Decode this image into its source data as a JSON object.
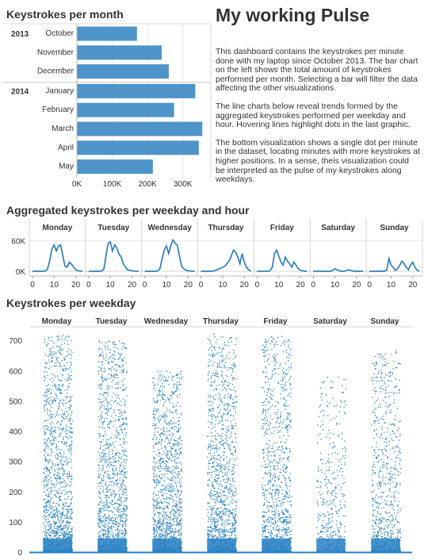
{
  "titles": {
    "month": "Keystrokes per month",
    "main": "My working Pulse",
    "aggregated": "Aggregated keystrokes per weekday and hour",
    "weekday": "Keystrokes per weekday"
  },
  "description": [
    "This dashboard contains the keystrokes per minute done with my laptop since October 2013. The bar chart on the left shows the total amount of keystrokes performed per month. Selecting a bar will filter the data affecting the other visualizations.",
    "The line charts below reveal trends formed by the aggregated keystrokes performed per weekday and hour. Hovering lines highlight dots in the last graphic.",
    "The bottom visualization shows a single dot per minute in the dataset, locating minutes with more keystrokes at higher positions. In a sense, theis visualization could be interpreted as the pulse of my keystrokes along weekdays."
  ],
  "colors": {
    "bar": "#4f94c9",
    "line": "#2f80bd",
    "dot": "#2a82c4",
    "grid": "#e6e6e6",
    "text": "#333333"
  },
  "chart_data": [
    {
      "type": "bar",
      "orientation": "horizontal",
      "title": "Keystrokes per month",
      "groups": [
        {
          "year": "2013",
          "categories": [
            "October",
            "November",
            "December"
          ],
          "values": [
            170000,
            240000,
            260000
          ]
        },
        {
          "year": "2014",
          "categories": [
            "January",
            "February",
            "March",
            "April",
            "May"
          ],
          "values": [
            335000,
            275000,
            355000,
            345000,
            215000
          ]
        }
      ],
      "xticks": [
        "0K",
        "100K",
        "200K",
        "300K"
      ],
      "xlim": [
        0,
        370000
      ]
    },
    {
      "type": "line",
      "title": "Aggregated keystrokes per weekday and hour",
      "panels": [
        "Monday",
        "Tuesday",
        "Wednesday",
        "Thursday",
        "Friday",
        "Saturday",
        "Sunday"
      ],
      "x": [
        0,
        1,
        2,
        3,
        4,
        5,
        6,
        7,
        8,
        9,
        10,
        11,
        12,
        13,
        14,
        15,
        16,
        17,
        18,
        19,
        20,
        21,
        22,
        23
      ],
      "xticks": [
        "0",
        "10",
        "20"
      ],
      "yticks": [
        "60K",
        "0K"
      ],
      "ylim": [
        0,
        72000
      ],
      "series": [
        {
          "values": [
            0,
            0,
            0,
            0,
            0,
            0,
            1000,
            5000,
            22000,
            45000,
            52000,
            40000,
            50000,
            52000,
            30000,
            10000,
            8000,
            18000,
            14000,
            8000,
            3000,
            1000,
            500,
            0
          ]
        },
        {
          "values": [
            0,
            0,
            0,
            0,
            0,
            0,
            500,
            4000,
            30000,
            55000,
            58000,
            40000,
            52000,
            46000,
            34000,
            28000,
            15000,
            8000,
            3000,
            2000,
            1000,
            500,
            0,
            0
          ]
        },
        {
          "values": [
            0,
            0,
            0,
            0,
            0,
            0,
            1000,
            5000,
            25000,
            42000,
            50000,
            35000,
            50000,
            62000,
            55000,
            52000,
            30000,
            10000,
            5000,
            2000,
            1000,
            500,
            0,
            0
          ]
        },
        {
          "values": [
            0,
            0,
            0,
            0,
            0,
            0,
            1000,
            2000,
            4000,
            6000,
            8000,
            10000,
            15000,
            20000,
            30000,
            42000,
            38000,
            28000,
            15000,
            35000,
            18000,
            8000,
            3000,
            0
          ]
        },
        {
          "values": [
            0,
            0,
            0,
            0,
            0,
            0,
            1000,
            8000,
            35000,
            42000,
            30000,
            18000,
            12000,
            28000,
            20000,
            15000,
            8000,
            18000,
            12000,
            5000,
            2000,
            1000,
            0,
            0
          ]
        },
        {
          "values": [
            0,
            0,
            0,
            0,
            0,
            0,
            0,
            0,
            0,
            2000,
            5000,
            3000,
            1000,
            0,
            0,
            1000,
            3000,
            2000,
            1000,
            0,
            0,
            0,
            0,
            0
          ]
        },
        {
          "values": [
            0,
            0,
            0,
            0,
            0,
            0,
            0,
            0,
            3000,
            25000,
            12000,
            8000,
            2000,
            5000,
            12000,
            20000,
            15000,
            8000,
            3000,
            12000,
            18000,
            8000,
            2000,
            0
          ]
        }
      ]
    },
    {
      "type": "scatter",
      "title": "Keystrokes per weekday",
      "panels": [
        "Monday",
        "Tuesday",
        "Wednesday",
        "Thursday",
        "Friday",
        "Saturday",
        "Sunday"
      ],
      "yticks": [
        0,
        100,
        200,
        300,
        400,
        500,
        600,
        700
      ],
      "ylim": [
        0,
        740
      ],
      "panel_peaks": [
        720,
        700,
        600,
        725,
        715,
        580,
        675
      ],
      "panel_density": [
        1.0,
        0.95,
        0.95,
        0.9,
        0.75,
        0.3,
        0.55
      ]
    }
  ]
}
